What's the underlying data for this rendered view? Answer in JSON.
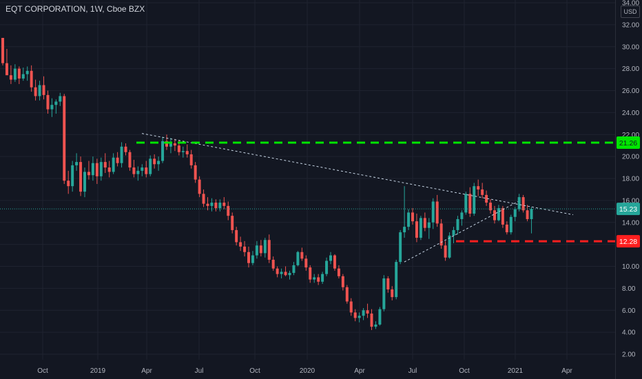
{
  "header": {
    "title": "EQT CORPORATION, 1W, Cboe BZX"
  },
  "axis": {
    "currency": "USD"
  },
  "colors": {
    "bg": "#131722",
    "up": "#26a69a",
    "down": "#ef5350",
    "grid": "#1f2330",
    "resistance": "#00e600",
    "support": "#ff1f1f",
    "trend": "#c8d6e5",
    "price": "#26a69a"
  },
  "chart_data": {
    "type": "candlestick",
    "y_range": [
      2,
      34
    ],
    "y_ticks": [
      "2.00",
      "4.00",
      "6.00",
      "8.00",
      "10.00",
      "12.00",
      "14.00",
      "16.00",
      "18.00",
      "20.00",
      "22.00",
      "24.00",
      "26.00",
      "28.00",
      "30.00",
      "32.00",
      "34.00"
    ],
    "x_ticks": [
      "Oct",
      "2019",
      "Apr",
      "Jul",
      "Oct",
      "2020",
      "Apr",
      "Jul",
      "Oct",
      "2021",
      "Apr"
    ],
    "price_labels": {
      "resistance": "21.26",
      "current": "15.23",
      "support": "12.28"
    },
    "candles": [
      [
        30.8,
        30.8,
        28.3,
        28.5
      ],
      [
        28.5,
        29.8,
        27.6,
        27.4
      ],
      [
        27.4,
        28.3,
        26.6,
        27.0
      ],
      [
        27.0,
        28.4,
        26.8,
        28.0
      ],
      [
        28.0,
        28.2,
        26.6,
        27.1
      ],
      [
        27.1,
        28.1,
        26.9,
        27.5
      ],
      [
        27.5,
        28.2,
        26.9,
        27.8
      ],
      [
        27.8,
        28.3,
        25.9,
        26.3
      ],
      [
        26.3,
        27.0,
        25.1,
        25.5
      ],
      [
        25.5,
        26.9,
        25.1,
        26.5
      ],
      [
        26.5,
        27.3,
        25.2,
        25.6
      ],
      [
        25.6,
        26.0,
        23.9,
        24.3
      ],
      [
        24.3,
        25.3,
        23.6,
        24.7
      ],
      [
        24.7,
        25.2,
        23.9,
        25.0
      ],
      [
        25.0,
        25.8,
        24.6,
        25.5
      ],
      [
        25.5,
        25.7,
        17.5,
        17.8
      ],
      [
        17.8,
        18.7,
        16.6,
        17.3
      ],
      [
        17.3,
        19.6,
        16.8,
        19.2
      ],
      [
        19.2,
        20.3,
        18.7,
        19.5
      ],
      [
        19.5,
        20.0,
        16.4,
        16.8
      ],
      [
        16.8,
        19.0,
        16.3,
        18.6
      ],
      [
        18.6,
        19.6,
        17.9,
        18.3
      ],
      [
        18.3,
        20.0,
        17.8,
        19.4
      ],
      [
        19.4,
        19.8,
        17.5,
        18.2
      ],
      [
        18.2,
        19.9,
        17.8,
        19.5
      ],
      [
        19.5,
        20.3,
        18.5,
        19.0
      ],
      [
        19.0,
        19.6,
        18.1,
        18.6
      ],
      [
        18.6,
        20.3,
        18.4,
        19.9
      ],
      [
        19.9,
        20.4,
        19.1,
        19.4
      ],
      [
        19.4,
        21.3,
        19.0,
        20.9
      ],
      [
        20.9,
        21.2,
        20.1,
        20.4
      ],
      [
        20.4,
        20.6,
        18.7,
        19.0
      ],
      [
        19.0,
        19.7,
        18.1,
        18.4
      ],
      [
        18.4,
        19.1,
        17.8,
        18.7
      ],
      [
        18.7,
        19.3,
        18.2,
        19.0
      ],
      [
        19.0,
        19.6,
        18.1,
        18.4
      ],
      [
        18.4,
        20.1,
        18.2,
        19.8
      ],
      [
        19.8,
        20.2,
        18.9,
        19.3
      ],
      [
        19.3,
        20.0,
        18.7,
        19.6
      ],
      [
        19.6,
        21.8,
        19.4,
        21.4
      ],
      [
        21.4,
        22.0,
        20.6,
        20.9
      ],
      [
        20.9,
        21.7,
        20.3,
        21.2
      ],
      [
        21.2,
        21.6,
        20.5,
        21.0
      ],
      [
        21.0,
        21.5,
        20.1,
        20.4
      ],
      [
        20.4,
        20.9,
        19.9,
        20.5
      ],
      [
        20.5,
        21.1,
        19.9,
        20.2
      ],
      [
        20.2,
        20.6,
        18.9,
        19.2
      ],
      [
        19.2,
        19.5,
        17.6,
        17.9
      ],
      [
        17.9,
        18.2,
        16.3,
        16.6
      ],
      [
        16.6,
        17.0,
        15.4,
        15.7
      ],
      [
        15.7,
        16.3,
        15.1,
        15.5
      ],
      [
        15.5,
        16.2,
        15.0,
        15.8
      ],
      [
        15.8,
        16.1,
        15.0,
        15.3
      ],
      [
        15.3,
        16.1,
        15.0,
        15.8
      ],
      [
        15.8,
        16.3,
        15.2,
        15.5
      ],
      [
        15.5,
        15.9,
        14.2,
        14.6
      ],
      [
        14.6,
        14.9,
        13.0,
        13.3
      ],
      [
        13.3,
        13.6,
        11.9,
        12.2
      ],
      [
        12.2,
        12.7,
        11.4,
        11.8
      ],
      [
        11.8,
        12.3,
        10.9,
        11.3
      ],
      [
        11.3,
        11.8,
        9.9,
        10.3
      ],
      [
        10.3,
        11.4,
        10.1,
        11.0
      ],
      [
        11.0,
        12.3,
        10.7,
        11.9
      ],
      [
        11.9,
        12.4,
        10.9,
        11.2
      ],
      [
        11.2,
        12.6,
        10.8,
        12.4
      ],
      [
        12.4,
        12.9,
        10.3,
        10.6
      ],
      [
        10.6,
        10.9,
        9.6,
        9.8
      ],
      [
        9.8,
        10.0,
        9.0,
        9.3
      ],
      [
        9.3,
        9.8,
        8.9,
        9.5
      ],
      [
        9.5,
        10.0,
        9.1,
        9.2
      ],
      [
        9.2,
        9.6,
        8.8,
        9.4
      ],
      [
        9.4,
        10.4,
        9.2,
        10.1
      ],
      [
        10.1,
        11.4,
        10.0,
        11.3
      ],
      [
        11.3,
        11.7,
        10.5,
        10.7
      ],
      [
        10.7,
        11.0,
        9.6,
        9.9
      ],
      [
        9.9,
        10.1,
        8.5,
        8.8
      ],
      [
        8.8,
        9.3,
        8.5,
        9.0
      ],
      [
        9.0,
        9.3,
        8.3,
        8.6
      ],
      [
        8.6,
        9.5,
        8.4,
        9.3
      ],
      [
        9.3,
        10.8,
        9.1,
        10.5
      ],
      [
        10.5,
        11.3,
        10.2,
        11.0
      ],
      [
        11.0,
        11.1,
        9.6,
        9.8
      ],
      [
        9.8,
        10.1,
        8.9,
        9.1
      ],
      [
        9.1,
        9.3,
        7.8,
        8.1
      ],
      [
        8.1,
        8.3,
        6.6,
        6.8
      ],
      [
        6.8,
        7.1,
        5.5,
        5.8
      ],
      [
        5.8,
        6.1,
        5.0,
        5.3
      ],
      [
        5.3,
        5.8,
        4.9,
        5.5
      ],
      [
        5.5,
        6.2,
        5.1,
        6.0
      ],
      [
        6.0,
        6.6,
        5.3,
        5.7
      ],
      [
        5.7,
        6.1,
        4.2,
        4.5
      ],
      [
        4.5,
        5.0,
        4.3,
        4.7
      ],
      [
        4.7,
        6.3,
        4.6,
        6.1
      ],
      [
        6.1,
        9.2,
        5.9,
        8.9
      ],
      [
        8.9,
        9.1,
        7.6,
        7.9
      ],
      [
        7.9,
        8.2,
        6.9,
        7.2
      ],
      [
        7.2,
        10.6,
        7.0,
        10.4
      ],
      [
        10.4,
        13.3,
        10.2,
        13.1
      ],
      [
        13.1,
        17.3,
        12.6,
        13.6
      ],
      [
        13.6,
        15.2,
        13.3,
        14.9
      ],
      [
        14.9,
        15.3,
        13.8,
        14.1
      ],
      [
        14.1,
        14.8,
        12.2,
        12.6
      ],
      [
        12.6,
        14.6,
        12.4,
        14.4
      ],
      [
        14.4,
        14.9,
        13.2,
        13.5
      ],
      [
        13.5,
        14.4,
        12.5,
        14.0
      ],
      [
        14.0,
        16.2,
        13.4,
        15.9
      ],
      [
        15.9,
        16.5,
        13.6,
        13.9
      ],
      [
        13.9,
        14.3,
        11.6,
        11.9
      ],
      [
        11.9,
        12.3,
        10.5,
        10.8
      ],
      [
        10.8,
        13.1,
        10.7,
        12.8
      ],
      [
        12.8,
        13.6,
        12.1,
        13.3
      ],
      [
        13.3,
        14.6,
        12.9,
        14.3
      ],
      [
        14.3,
        15.1,
        13.7,
        14.9
      ],
      [
        14.9,
        16.8,
        14.7,
        16.6
      ],
      [
        16.6,
        17.2,
        14.5,
        14.8
      ],
      [
        14.8,
        17.6,
        14.6,
        17.3
      ],
      [
        17.3,
        17.9,
        16.4,
        17.0
      ],
      [
        17.0,
        17.6,
        16.2,
        16.5
      ],
      [
        16.5,
        16.9,
        15.5,
        15.8
      ],
      [
        15.8,
        16.1,
        14.8,
        15.1
      ],
      [
        15.1,
        15.5,
        13.9,
        14.2
      ],
      [
        14.2,
        15.6,
        14.1,
        15.3
      ],
      [
        15.3,
        15.5,
        13.5,
        13.8
      ],
      [
        13.8,
        14.1,
        12.9,
        13.1
      ],
      [
        13.1,
        14.7,
        12.9,
        14.5
      ],
      [
        14.5,
        15.4,
        14.1,
        15.2
      ],
      [
        15.2,
        16.6,
        15.0,
        16.3
      ],
      [
        16.3,
        16.5,
        14.9,
        15.1
      ],
      [
        15.1,
        15.6,
        14.1,
        14.3
      ],
      [
        14.3,
        15.4,
        13.0,
        15.23
      ]
    ]
  }
}
